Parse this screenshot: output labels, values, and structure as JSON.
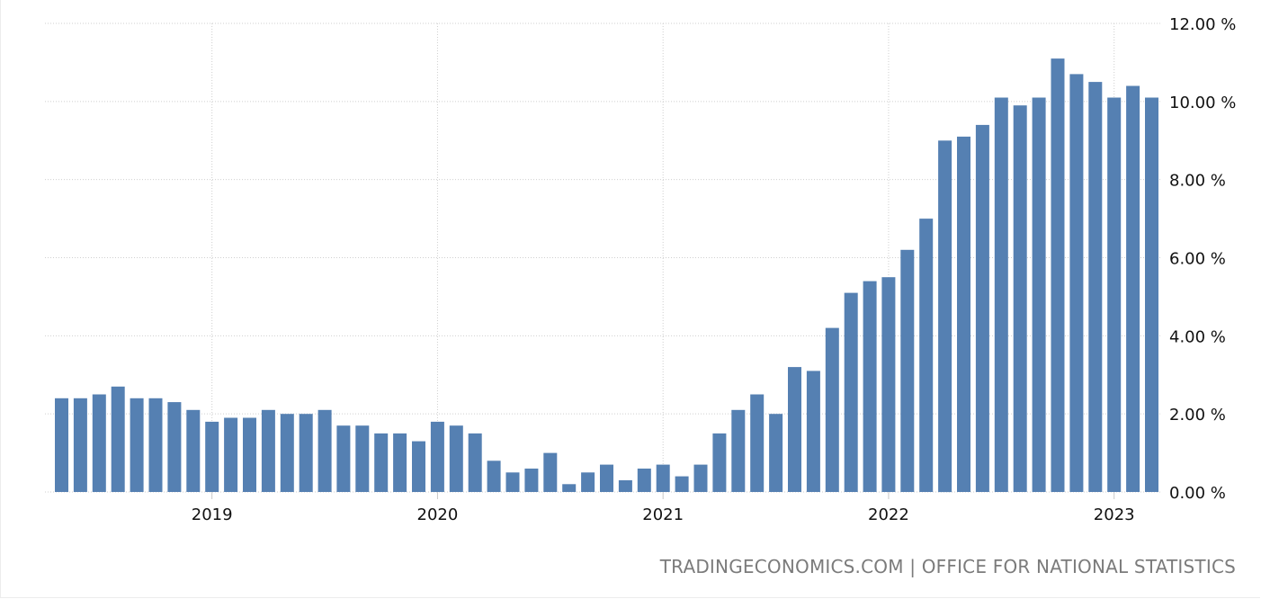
{
  "footer": {
    "source": "TRADINGECONOMICS.COM | OFFICE FOR NATIONAL STATISTICS"
  },
  "colors": {
    "bar": "#5580b2",
    "grid": "#cfcfcf",
    "axis_text": "#111111",
    "footer_text": "#7b7b7b"
  },
  "chart_data": {
    "type": "bar",
    "title": "",
    "xlabel": "",
    "ylabel": "",
    "ylim": [
      0,
      12
    ],
    "y_ticks": [
      "0.00 %",
      "2.00 %",
      "4.00 %",
      "6.00 %",
      "8.00 %",
      "10.00 %",
      "12.00 %"
    ],
    "y_axis_position": "right",
    "x_ticks": [
      "2019",
      "2020",
      "2021",
      "2022",
      "2023"
    ],
    "grid": true,
    "legend": null,
    "categories": [
      "2018-05",
      "2018-06",
      "2018-07",
      "2018-08",
      "2018-09",
      "2018-10",
      "2018-11",
      "2018-12",
      "2019-01",
      "2019-02",
      "2019-03",
      "2019-04",
      "2019-05",
      "2019-06",
      "2019-07",
      "2019-08",
      "2019-09",
      "2019-10",
      "2019-11",
      "2019-12",
      "2020-01",
      "2020-02",
      "2020-03",
      "2020-04",
      "2020-05",
      "2020-06",
      "2020-07",
      "2020-08",
      "2020-09",
      "2020-10",
      "2020-11",
      "2020-12",
      "2021-01",
      "2021-02",
      "2021-03",
      "2021-04",
      "2021-05",
      "2021-06",
      "2021-07",
      "2021-08",
      "2021-09",
      "2021-10",
      "2021-11",
      "2021-12",
      "2022-01",
      "2022-02",
      "2022-03",
      "2022-04",
      "2022-05",
      "2022-06",
      "2022-07",
      "2022-08",
      "2022-09",
      "2022-10",
      "2022-11",
      "2022-12",
      "2023-01",
      "2023-02",
      "2023-03"
    ],
    "values": [
      2.4,
      2.4,
      2.5,
      2.7,
      2.4,
      2.4,
      2.3,
      2.1,
      1.8,
      1.9,
      1.9,
      2.1,
      2.0,
      2.0,
      2.1,
      1.7,
      1.7,
      1.5,
      1.5,
      1.3,
      1.8,
      1.7,
      1.5,
      0.8,
      0.5,
      0.6,
      1.0,
      0.2,
      0.5,
      0.7,
      0.3,
      0.6,
      0.7,
      0.4,
      0.7,
      1.5,
      2.1,
      2.5,
      2.0,
      3.2,
      3.1,
      4.2,
      5.1,
      5.4,
      5.5,
      6.2,
      7.0,
      9.0,
      9.1,
      9.4,
      10.1,
      9.9,
      10.1,
      11.1,
      10.7,
      10.5,
      10.1,
      10.4,
      10.1
    ],
    "unit": "%"
  }
}
